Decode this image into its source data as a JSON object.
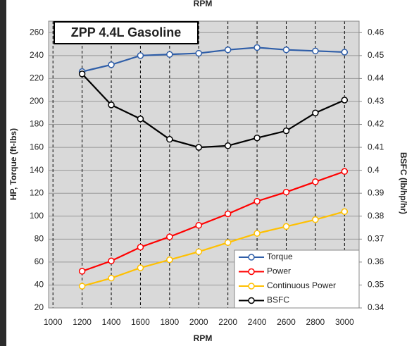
{
  "chart_data": {
    "type": "line",
    "title": "ZPP 4.4L Gasoline",
    "x_label": "RPM",
    "x2_label": "RPM",
    "y_label": "HP, Torque (ft-lbs)",
    "y2_label": "BSFC (lb/hp/hr)",
    "x": [
      1200,
      1400,
      1600,
      1800,
      2000,
      2200,
      2400,
      2600,
      2800,
      3000
    ],
    "xlim": [
      970,
      3100
    ],
    "xticks": [
      1000,
      1200,
      1400,
      1600,
      1800,
      2000,
      2200,
      2400,
      2600,
      2800,
      3000
    ],
    "ylim": [
      20,
      270
    ],
    "yticks": [
      20,
      40,
      60,
      80,
      100,
      120,
      140,
      160,
      180,
      200,
      220,
      240,
      260
    ],
    "y2lim": [
      0.34,
      0.465
    ],
    "y2ticks": [
      0.34,
      0.35,
      0.36,
      0.37,
      0.38,
      0.39,
      0.4,
      0.41,
      0.42,
      0.43,
      0.44,
      0.45,
      0.46
    ],
    "grid": true,
    "legend": "lower right",
    "series": [
      {
        "name": "Torque",
        "color": "#2f5ea8",
        "values": [
          226,
          232,
          240,
          241,
          242,
          245,
          247,
          245,
          244,
          243
        ]
      },
      {
        "name": "Power",
        "color": "#ff0000",
        "values": [
          52,
          61,
          73,
          82,
          92,
          102,
          113,
          121,
          130,
          139
        ]
      },
      {
        "name": "Continuous Power",
        "color": "#ffc000",
        "values": [
          39,
          46,
          55,
          62,
          69,
          77,
          85,
          91,
          97,
          104
        ]
      },
      {
        "name": "BSFC",
        "color": "#000000",
        "axis": "y2",
        "values": [
          0.442,
          0.4285,
          0.4224,
          0.4135,
          0.41,
          0.4107,
          0.4141,
          0.4172,
          0.425,
          0.4306
        ]
      }
    ]
  }
}
